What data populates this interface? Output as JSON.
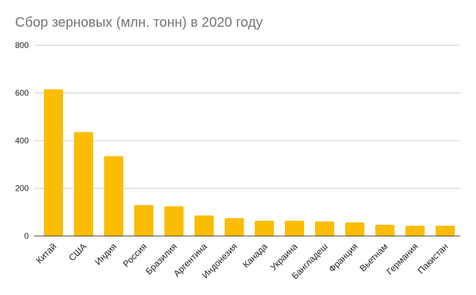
{
  "chart_data": {
    "type": "bar",
    "title": "Сбор зерновых (млн. тонн) в 2020 году",
    "xlabel": "",
    "ylabel": "",
    "categories": [
      "Китай",
      "США",
      "Индия",
      "Россия",
      "Бразилия",
      "Аргентина",
      "Индонезия",
      "Канада",
      "Украина",
      "Бангладеш",
      "Франция",
      "Вьетнам",
      "Германия",
      "Пакистан"
    ],
    "values": [
      615,
      436,
      335,
      130,
      125,
      86,
      75,
      64,
      64,
      61,
      57,
      47,
      43,
      43
    ],
    "ylim": [
      0,
      800
    ],
    "yticks": [
      "0",
      "200",
      "400",
      "600",
      "800"
    ],
    "grid": true,
    "legend": "none",
    "colors": {
      "bar": "#fbbc04",
      "grid": "#cccccc",
      "axis": "#333333",
      "title": "#757575",
      "tick_label": "#222222"
    }
  }
}
